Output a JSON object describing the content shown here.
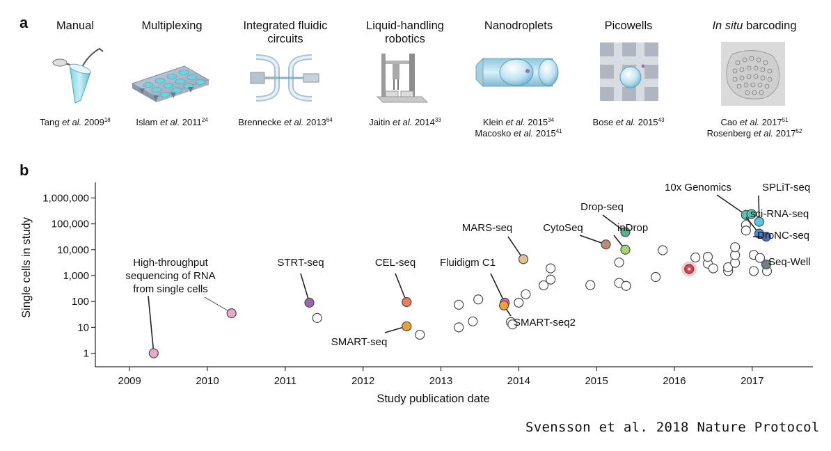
{
  "panel_a": {
    "label": "a",
    "platforms": [
      {
        "title": [
          "Manual"
        ],
        "icon": "pcr-tube-icon",
        "citations": [
          {
            "pre": "Tang ",
            "italic": "et al.",
            "post": " 2009",
            "ref": "18"
          }
        ]
      },
      {
        "title": [
          "Multiplexing"
        ],
        "icon": "well-plate-icon",
        "citations": [
          {
            "pre": "Islam ",
            "italic": "et al.",
            "post": " 2011",
            "ref": "24"
          }
        ]
      },
      {
        "title": [
          "Integrated fluidic",
          "circuits"
        ],
        "icon": "fluidic-circuit-icon",
        "citations": [
          {
            "pre": "Brennecke ",
            "italic": "et al.",
            "post": " 2013",
            "ref": "64"
          }
        ]
      },
      {
        "title": [
          "Liquid-handling",
          "robotics"
        ],
        "icon": "robot-icon",
        "citations": [
          {
            "pre": "Jaitin ",
            "italic": "et al.",
            "post": " 2014",
            "ref": "33"
          }
        ]
      },
      {
        "title": [
          "Nanodroplets"
        ],
        "icon": "droplet-channel-icon",
        "citations": [
          {
            "pre": "Klein ",
            "italic": "et al.",
            "post": " 2015",
            "ref": "34"
          },
          {
            "pre": "Macosko ",
            "italic": "et al.",
            "post": " 2015",
            "ref": "41"
          }
        ]
      },
      {
        "title": [
          "Picowells"
        ],
        "icon": "picowell-icon",
        "citations": [
          {
            "pre": "Bose ",
            "italic": "et al.",
            "post": " 2015",
            "ref": "43"
          }
        ]
      },
      {
        "title": [
          "In situ barcoding"
        ],
        "title_italic": "In situ",
        "title_rest": " barcoding",
        "icon": "cell-cluster-icon",
        "citations": [
          {
            "pre": "Cao ",
            "italic": "et al.",
            "post": " 2017",
            "ref": "51"
          },
          {
            "pre": "Rosenberg ",
            "italic": "et al.",
            "post": " 2017",
            "ref": "52"
          }
        ]
      }
    ]
  },
  "chart_data": {
    "type": "scatter",
    "panel_label": "b",
    "xlabel": "Study publication date",
    "ylabel": "Single cells in study",
    "xlim": [
      2008.56,
      2017.78
    ],
    "ylim": [
      0.3,
      4000000
    ],
    "y_scale": "log",
    "x_ticks": [
      2009,
      2010,
      2011,
      2012,
      2013,
      2014,
      2015,
      2016,
      2017
    ],
    "x_tick_labels": [
      "2009",
      "2010",
      "2011",
      "2012",
      "2013",
      "2014",
      "2015",
      "2016",
      "2017"
    ],
    "y_ticks": [
      1,
      10,
      100,
      1000,
      10000,
      100000,
      1000000
    ],
    "y_tick_labels": [
      "1",
      "10",
      "100",
      "1,000",
      "10,000",
      "100,000",
      "1,000,000"
    ],
    "grid": false,
    "colors": {
      "open": "#ffffff",
      "stroke": "#4a4a4a",
      "axis": "#333333"
    },
    "labeled_points": [
      {
        "x": 2009.31,
        "y": 1,
        "color": "#e7aacb",
        "label": [
          "High-throughput",
          "sequencing of RNA",
          "from single cells"
        ]
      },
      {
        "x": 2010.31,
        "y": 35,
        "color": "#e7aacb",
        "label": []
      },
      {
        "x": 2011.31,
        "y": 90,
        "color": "#9e64b0",
        "label": [
          "STRT-seq"
        ]
      },
      {
        "x": 2012.56,
        "y": 95,
        "color": "#f07b55",
        "label": [
          "CEL-seq"
        ]
      },
      {
        "x": 2012.56,
        "y": 11,
        "color": "#f2a035",
        "label": [
          "SMART-seq"
        ]
      },
      {
        "x": 2013.82,
        "y": 90,
        "color": "#ef5ba5",
        "label": [
          "Fluidigm C1"
        ]
      },
      {
        "x": 2013.81,
        "y": 70,
        "color": "#f2a035",
        "label": [
          "SMART-seq2"
        ]
      },
      {
        "x": 2014.06,
        "y": 4300,
        "color": "#e2c390",
        "label": [
          "MARS-seq"
        ]
      },
      {
        "x": 2015.12,
        "y": 16000,
        "color": "#c08a78",
        "label": [
          "CytoSeq"
        ]
      },
      {
        "x": 2015.37,
        "y": 48000,
        "color": "#56b38c",
        "label": [
          "Drop-seq"
        ]
      },
      {
        "x": 2015.37,
        "y": 10000,
        "color": "#a9d56f",
        "label": [
          "inDrop"
        ]
      },
      {
        "x": 2016.19,
        "y": 1800,
        "color": "#ee3a4a",
        "label": []
      },
      {
        "x": 2016.92,
        "y": 220000,
        "color": "#54c3b2",
        "label": [
          "10x Genomics"
        ]
      },
      {
        "x": 2016.99,
        "y": 240000,
        "color": "#54c3b2",
        "label": []
      },
      {
        "x": 2017.09,
        "y": 120000,
        "color": "#59c7ea",
        "label": [
          "SPLiT-seq"
        ]
      },
      {
        "x": 2017.09,
        "y": 42000,
        "color": "#4a8ad8",
        "label": [
          "sci-RNA-seq"
        ]
      },
      {
        "x": 2017.18,
        "y": 32000,
        "color": "#4a74c5",
        "label": [
          "DroNC-seq"
        ]
      },
      {
        "x": 2017.18,
        "y": 2700,
        "color": "#6f7f86",
        "label": [
          "Seq-Well"
        ]
      }
    ],
    "open_points": [
      {
        "x": 2011.41,
        "y": 23
      },
      {
        "x": 2012.73,
        "y": 5.2
      },
      {
        "x": 2013.23,
        "y": 75
      },
      {
        "x": 2013.23,
        "y": 10
      },
      {
        "x": 2013.41,
        "y": 17
      },
      {
        "x": 2013.48,
        "y": 120
      },
      {
        "x": 2013.9,
        "y": 16
      },
      {
        "x": 2013.92,
        "y": 13
      },
      {
        "x": 2014.0,
        "y": 90
      },
      {
        "x": 2014.09,
        "y": 190
      },
      {
        "x": 2014.32,
        "y": 420
      },
      {
        "x": 2014.41,
        "y": 700
      },
      {
        "x": 2014.41,
        "y": 1900
      },
      {
        "x": 2014.92,
        "y": 430
      },
      {
        "x": 2015.29,
        "y": 3200
      },
      {
        "x": 2015.29,
        "y": 520
      },
      {
        "x": 2015.38,
        "y": 400
      },
      {
        "x": 2015.76,
        "y": 880
      },
      {
        "x": 2015.85,
        "y": 9500
      },
      {
        "x": 2016.27,
        "y": 5000
      },
      {
        "x": 2016.43,
        "y": 2900
      },
      {
        "x": 2016.43,
        "y": 5300
      },
      {
        "x": 2016.5,
        "y": 1900
      },
      {
        "x": 2016.69,
        "y": 1500
      },
      {
        "x": 2016.69,
        "y": 2100
      },
      {
        "x": 2016.78,
        "y": 3100
      },
      {
        "x": 2016.78,
        "y": 6200
      },
      {
        "x": 2016.78,
        "y": 12500
      },
      {
        "x": 2016.92,
        "y": 90000
      },
      {
        "x": 2016.92,
        "y": 55000
      },
      {
        "x": 2017.02,
        "y": 1500
      },
      {
        "x": 2017.02,
        "y": 6300
      },
      {
        "x": 2017.1,
        "y": 4800
      },
      {
        "x": 2017.19,
        "y": 1500
      }
    ]
  },
  "credit": "Svensson et al. 2018 Nature Protocol"
}
